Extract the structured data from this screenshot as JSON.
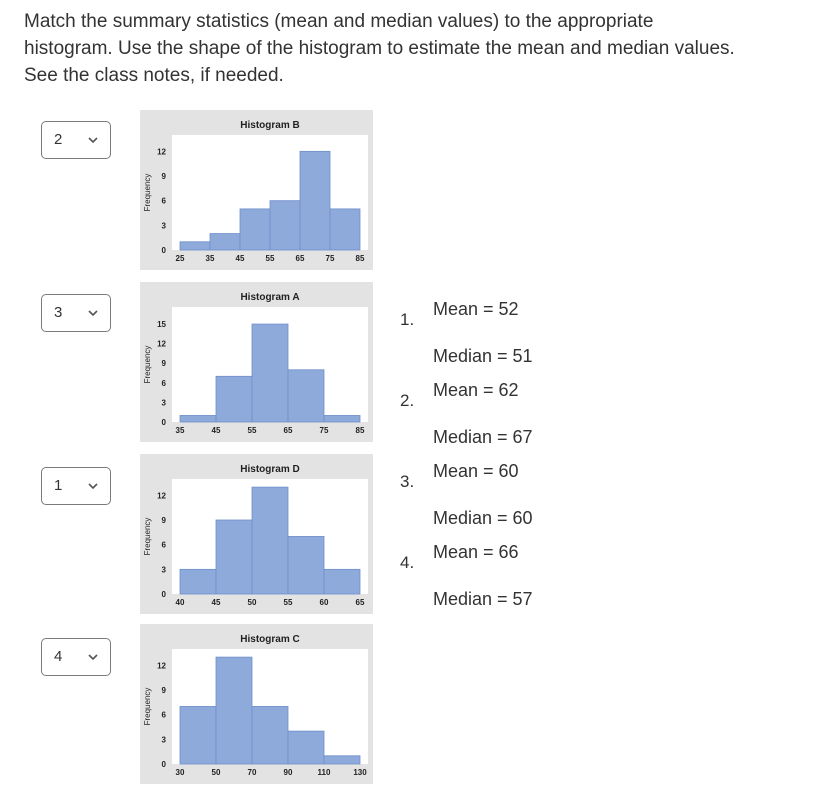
{
  "question": {
    "prompt_line1": "Match the summary statistics (mean and median values) to the appropriate",
    "prompt_line2": "histogram. Use the shape of the histogram to estimate the mean and median values.",
    "prompt_line3": "See the class notes, if needed."
  },
  "selects": [
    {
      "value": "2",
      "icon": "chevron-down-icon"
    },
    {
      "value": "3",
      "icon": "chevron-down-icon"
    },
    {
      "value": "1",
      "icon": "chevron-down-icon"
    },
    {
      "value": "4",
      "icon": "chevron-down-icon"
    }
  ],
  "chart_data": [
    {
      "type": "bar",
      "title": "Histogram B",
      "ylabel": "Frequency",
      "xticks": [
        "25",
        "35",
        "45",
        "55",
        "65",
        "75",
        "85"
      ],
      "yticks": [
        "0",
        "3",
        "6",
        "9",
        "12"
      ],
      "ylim": [
        0,
        13.5
      ],
      "bins": [
        [
          25,
          35
        ],
        [
          35,
          45
        ],
        [
          45,
          55
        ],
        [
          55,
          65
        ],
        [
          65,
          75
        ],
        [
          75,
          85
        ]
      ],
      "values": [
        1,
        2,
        5,
        6,
        12,
        5
      ],
      "colors": {
        "bar": "#8eaadb",
        "bar_edge": "#6f8fc9",
        "frame": "#e3e3e3"
      }
    },
    {
      "type": "bar",
      "title": "Histogram A",
      "ylabel": "Frequency",
      "xticks": [
        "35",
        "45",
        "55",
        "65",
        "75",
        "85"
      ],
      "yticks": [
        "0",
        "3",
        "6",
        "9",
        "12",
        "15"
      ],
      "ylim": [
        0,
        17
      ],
      "bins": [
        [
          35,
          45
        ],
        [
          45,
          55
        ],
        [
          55,
          65
        ],
        [
          65,
          75
        ],
        [
          75,
          85
        ]
      ],
      "values": [
        1,
        7,
        15,
        8,
        1
      ],
      "colors": {
        "bar": "#8eaadb",
        "bar_edge": "#6f8fc9",
        "frame": "#e3e3e3"
      }
    },
    {
      "type": "bar",
      "title": "Histogram D",
      "ylabel": "Frequency",
      "xticks": [
        "40",
        "45",
        "50",
        "55",
        "60",
        "65"
      ],
      "yticks": [
        "0",
        "3",
        "6",
        "9",
        "12"
      ],
      "ylim": [
        0,
        13.5
      ],
      "bins": [
        [
          40,
          45
        ],
        [
          45,
          50
        ],
        [
          50,
          55
        ],
        [
          55,
          60
        ],
        [
          60,
          65
        ]
      ],
      "values": [
        3,
        9,
        13,
        7,
        3
      ],
      "colors": {
        "bar": "#8eaadb",
        "bar_edge": "#6f8fc9",
        "frame": "#e3e3e3"
      }
    },
    {
      "type": "bar",
      "title": "Histogram C",
      "ylabel": "Frequency",
      "xticks": [
        "30",
        "50",
        "70",
        "90",
        "110",
        "130"
      ],
      "yticks": [
        "0",
        "3",
        "6",
        "9",
        "12"
      ],
      "ylim": [
        0,
        13.5
      ],
      "bins": [
        [
          30,
          50
        ],
        [
          50,
          70
        ],
        [
          70,
          90
        ],
        [
          90,
          110
        ],
        [
          110,
          130
        ]
      ],
      "values": [
        7,
        13,
        7,
        4,
        1
      ],
      "colors": {
        "bar": "#8eaadb",
        "bar_edge": "#6f8fc9",
        "frame": "#e3e3e3"
      }
    }
  ],
  "answers": [
    {
      "number": "1.",
      "mean": "Mean = 52",
      "median": "Median = 51"
    },
    {
      "number": "2.",
      "mean": "Mean = 62",
      "median": "Median = 67"
    },
    {
      "number": "3.",
      "mean": "Mean = 60",
      "median": "Median = 60"
    },
    {
      "number": "4.",
      "mean": "Mean = 66",
      "median": "Median = 57"
    }
  ]
}
